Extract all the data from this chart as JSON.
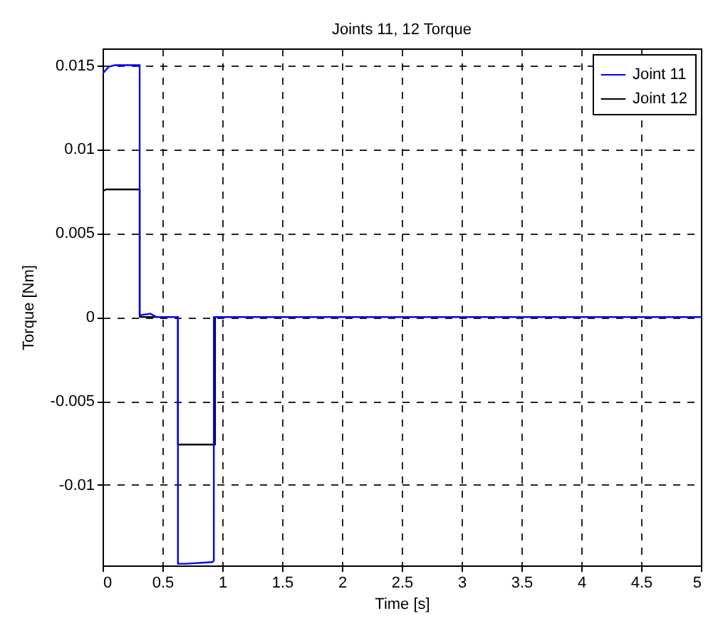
{
  "chart_data": {
    "type": "line",
    "title": "Joints 11, 12 Torque",
    "xlabel": "Time [s]",
    "ylabel": "Torque [Nm]",
    "series": [
      {
        "name": "Joint 11",
        "color": "#0000ff",
        "x": [
          0,
          0.05,
          0.1,
          0.31,
          0.31,
          0.4,
          0.45,
          0.63,
          0.63,
          0.7,
          0.92,
          0.93,
          0.93,
          1.0,
          5
        ],
        "values": [
          0.0145,
          0.0149,
          0.015,
          0.015,
          0.0001,
          0.0002,
          0,
          0,
          -0.0147,
          -0.0147,
          -0.0146,
          -0.0145,
          0,
          0,
          0
        ]
      },
      {
        "name": "Joint 12",
        "color": "#000000",
        "x": [
          0,
          0.03,
          0.31,
          0.31,
          0.63,
          0.63,
          0.94,
          0.94,
          5
        ],
        "values": [
          0.0075,
          0.0076,
          0.0076,
          0,
          0,
          -0.0076,
          -0.0076,
          0,
          0
        ]
      }
    ],
    "xlim": [
      0,
      5
    ],
    "xticks": [
      0,
      0.5,
      1,
      1.5,
      2,
      2.5,
      3,
      3.5,
      4,
      4.5,
      5
    ],
    "ylim": [
      -0.0148,
      0.016
    ],
    "yticks": [
      -0.01,
      -0.005,
      0,
      0.005,
      0.01,
      0.015
    ],
    "grid": true,
    "legend": "top right",
    "line_style": "solid",
    "marker": "none"
  }
}
